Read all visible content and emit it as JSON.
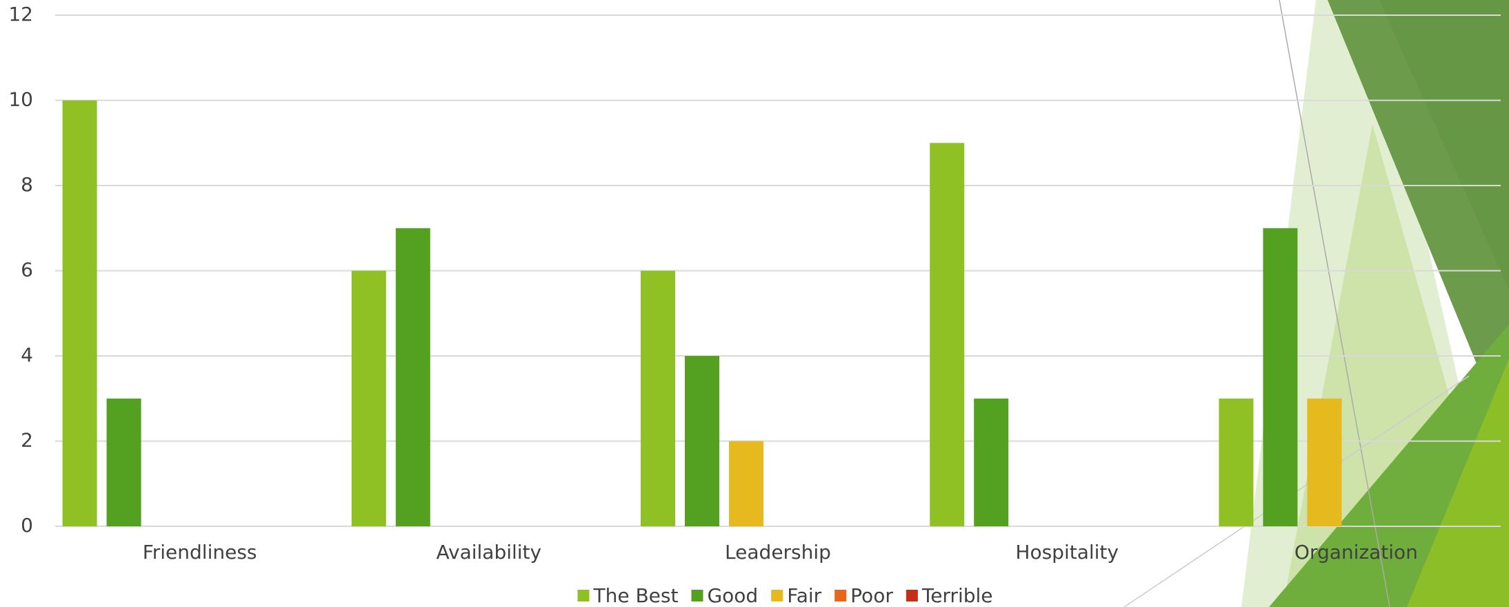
{
  "chart_data": {
    "type": "bar",
    "categories": [
      "Friendliness",
      "Availability",
      "Leadership",
      "Hospitality",
      "Organization"
    ],
    "series": [
      {
        "name": "The Best",
        "color": "#8fc125",
        "values": [
          10,
          6,
          6,
          9,
          3
        ]
      },
      {
        "name": "Good",
        "color": "#54a021",
        "values": [
          3,
          7,
          4,
          3,
          7
        ]
      },
      {
        "name": "Fair",
        "color": "#e6b91e",
        "values": [
          0,
          0,
          2,
          0,
          3
        ]
      },
      {
        "name": "Poor",
        "color": "#e76618",
        "values": [
          0,
          0,
          0,
          0,
          0
        ]
      },
      {
        "name": "Terrible",
        "color": "#c42f1a",
        "values": [
          0,
          0,
          0,
          0,
          0
        ]
      }
    ],
    "ylim": [
      0,
      12
    ],
    "yticks": [
      0,
      2,
      4,
      6,
      8,
      10,
      12
    ],
    "grid": true,
    "legend": "bottom"
  }
}
